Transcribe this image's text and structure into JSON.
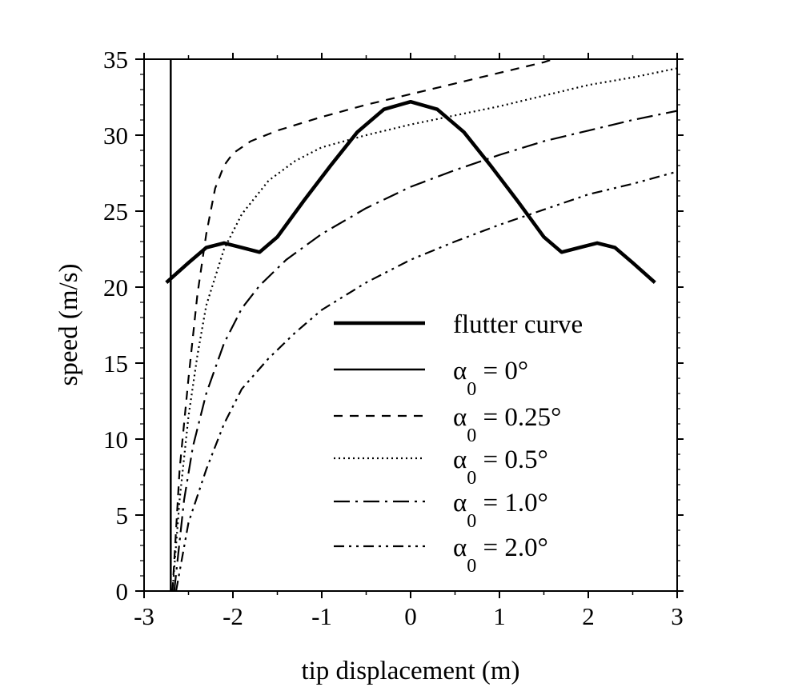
{
  "chart_data": {
    "type": "line",
    "title": "",
    "xlabel": "tip displacement (m)",
    "ylabel": "speed (m/s)",
    "xlim": [
      -3,
      3
    ],
    "ylim": [
      0,
      35
    ],
    "x_ticks": [
      -3,
      -2,
      -1,
      0,
      1,
      2,
      3
    ],
    "y_ticks": [
      0,
      5,
      10,
      15,
      20,
      25,
      30,
      35
    ],
    "x_tick_labels": [
      "-3",
      "-2",
      "-1",
      "0",
      "1",
      "2",
      "3"
    ],
    "y_tick_labels": [
      "0",
      "5",
      "10",
      "15",
      "20",
      "25",
      "30",
      "35"
    ],
    "grid": false,
    "legend_position": "lower-right",
    "series": [
      {
        "name": "flutter curve",
        "style": "solid-thick",
        "x": [
          -2.75,
          -2.5,
          -2.3,
          -2.1,
          -1.9,
          -1.7,
          -1.5,
          -1.2,
          -0.9,
          -0.6,
          -0.3,
          0,
          0.3,
          0.6,
          0.9,
          1.2,
          1.5,
          1.7,
          1.9,
          2.1,
          2.3,
          2.5,
          2.75
        ],
        "y": [
          20.3,
          21.6,
          22.6,
          22.9,
          22.6,
          22.3,
          23.3,
          25.7,
          28.0,
          30.2,
          31.7,
          32.2,
          31.7,
          30.2,
          28.0,
          25.7,
          23.3,
          22.3,
          22.6,
          22.9,
          22.6,
          21.6,
          20.3
        ]
      },
      {
        "name": "α0 = 0°",
        "label_base": "α",
        "label_sub": "0",
        "label_rest": " = 0°",
        "style": "solid",
        "x": [
          -2.7,
          -2.7
        ],
        "y": [
          0,
          35
        ]
      },
      {
        "name": "α0 = 0.25°",
        "label_base": "α",
        "label_sub": "0",
        "label_rest": " = 0.25°",
        "style": "dash",
        "x": [
          -2.68,
          -2.6,
          -2.5,
          -2.4,
          -2.3,
          -2.2,
          -2.1,
          -2.0,
          -1.8,
          -1.5,
          -1.0,
          -0.5,
          0,
          0.5,
          1.0,
          1.5,
          1.6
        ],
        "y": [
          0,
          8,
          14,
          19.5,
          23.5,
          26.5,
          28.0,
          28.8,
          29.6,
          30.3,
          31.2,
          32.0,
          32.7,
          33.4,
          34.1,
          34.8,
          35.0
        ]
      },
      {
        "name": "α0 = 0.5°",
        "label_base": "α",
        "label_sub": "0",
        "label_rest": " = 0.5°",
        "style": "dot",
        "x": [
          -2.68,
          -2.6,
          -2.5,
          -2.4,
          -2.3,
          -2.1,
          -1.9,
          -1.6,
          -1.3,
          -1.0,
          -0.5,
          0,
          0.5,
          1.0,
          1.5,
          2.0,
          2.5,
          3.0
        ],
        "y": [
          0,
          6,
          11.5,
          15.5,
          18.8,
          22.5,
          24.8,
          27.0,
          28.3,
          29.2,
          30.0,
          30.7,
          31.3,
          31.9,
          32.6,
          33.3,
          33.8,
          34.4
        ]
      },
      {
        "name": "α0 = 1.0°",
        "label_base": "α",
        "label_sub": "0",
        "label_rest": " = 1.0°",
        "style": "dashdot",
        "x": [
          -2.66,
          -2.55,
          -2.45,
          -2.3,
          -2.1,
          -1.9,
          -1.7,
          -1.4,
          -1.0,
          -0.5,
          0,
          0.5,
          1.0,
          1.5,
          2.0,
          2.5,
          3.0
        ],
        "y": [
          0,
          6,
          9.5,
          13.0,
          16.3,
          18.6,
          20.1,
          21.8,
          23.5,
          25.2,
          26.6,
          27.7,
          28.7,
          29.6,
          30.3,
          31.0,
          31.6
        ]
      },
      {
        "name": "α0 = 2.0°",
        "label_base": "α",
        "label_sub": "0",
        "label_rest": " = 2.0°",
        "style": "dashdotdot",
        "x": [
          -2.64,
          -2.5,
          -2.3,
          -2.1,
          -1.9,
          -1.6,
          -1.3,
          -1.0,
          -0.5,
          0,
          0.5,
          1.0,
          1.5,
          2.0,
          2.5,
          3.0
        ],
        "y": [
          0,
          4.5,
          8.0,
          11.0,
          13.3,
          15.3,
          17.0,
          18.5,
          20.3,
          21.8,
          23.0,
          24.1,
          25.1,
          26.1,
          26.8,
          27.6
        ]
      }
    ]
  }
}
